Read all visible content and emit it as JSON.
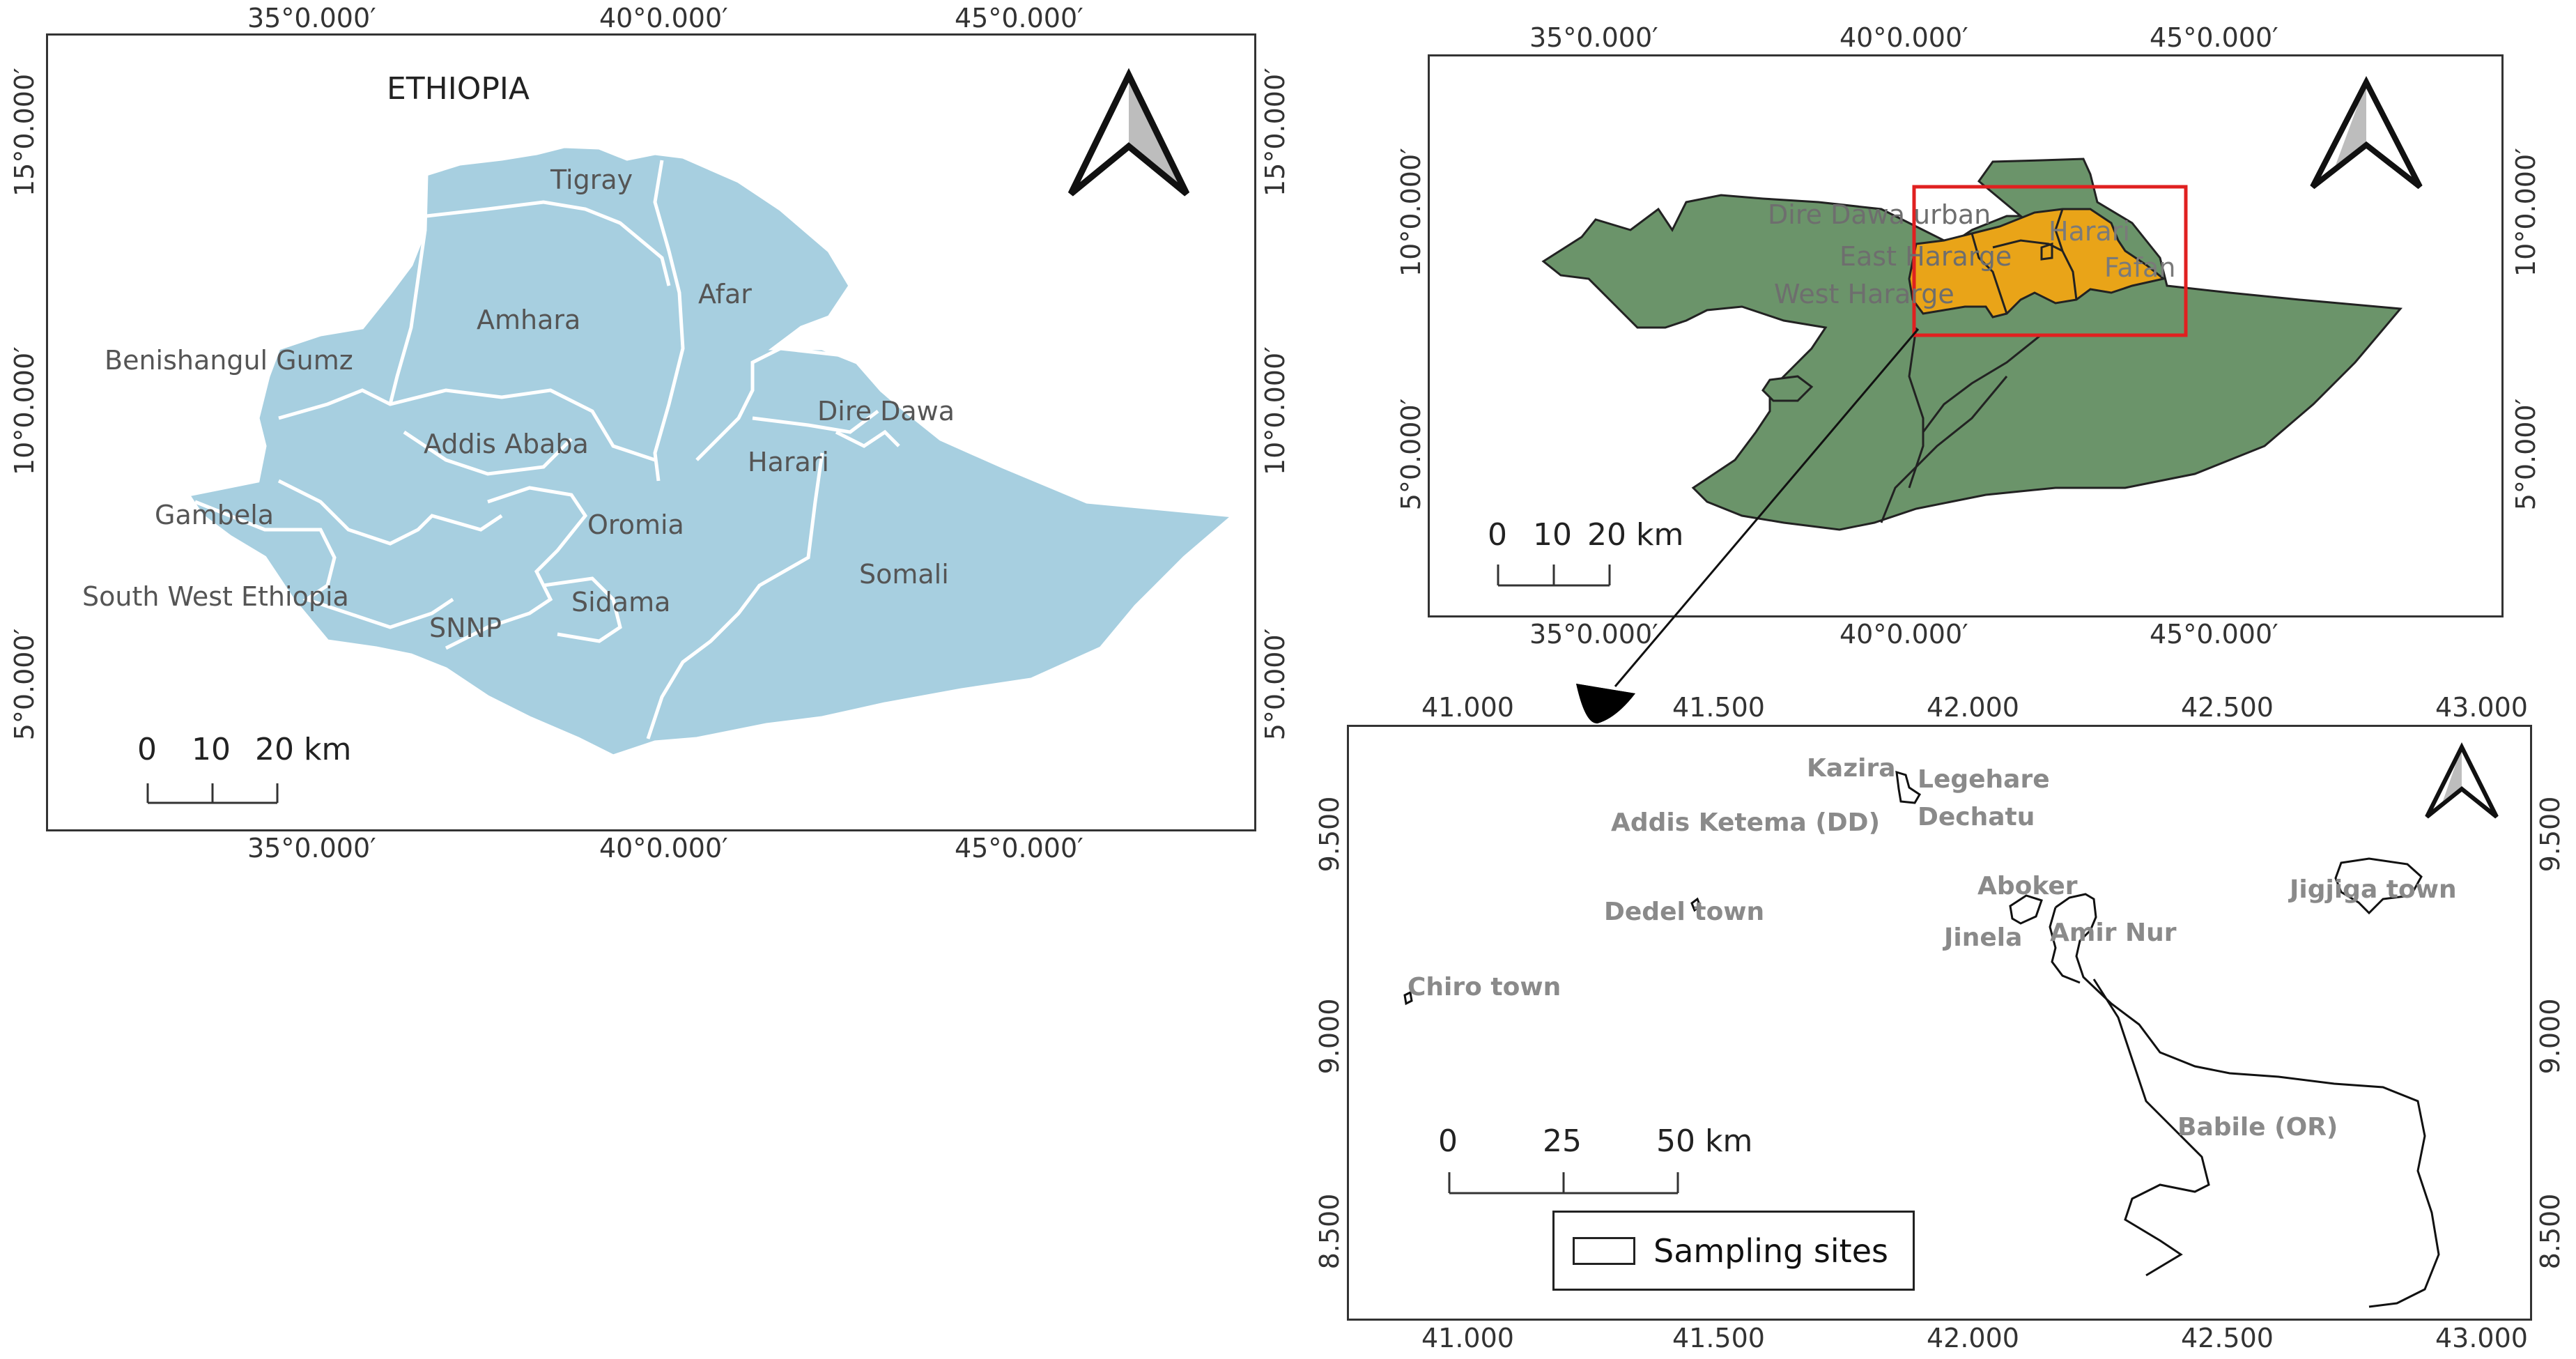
{
  "map1": {
    "title": "ETHIOPIA",
    "top_ticks": [
      "35°0.000′",
      "40°0.000′",
      "45°0.000′"
    ],
    "bottom_ticks": [
      "35°0.000′",
      "40°0.000′",
      "45°0.000′"
    ],
    "left_ticks": [
      "15°0.000′",
      "10°0.000′",
      "5°0.000′"
    ],
    "right_ticks": [
      "15°0.000′",
      "10°0.000′",
      "5°0.000′"
    ],
    "regions": [
      "Tigray",
      "Afar",
      "Amhara",
      "Benishangul Gumz",
      "Addis Ababa",
      "Dire Dawa",
      "Harari",
      "Gambela",
      "Oromia",
      "Somali",
      "South West Ethiopia",
      "SNNP",
      "Sidama"
    ],
    "scalebar": [
      "0",
      "10",
      "20 km"
    ],
    "fill_color": "#a7cfe0"
  },
  "map2": {
    "top_ticks": [
      "35°0.000′",
      "40°0.000′",
      "45°0.000′"
    ],
    "bottom_ticks": [
      "35°0.000′",
      "40°0.000′",
      "45°0.000′"
    ],
    "left_ticks": [
      "10°0.000′",
      "5°0.000′"
    ],
    "right_ticks": [
      "10°0.000′",
      "5°0.000′"
    ],
    "zones": [
      "Dire Dawa urban",
      "Harari",
      "East Hararge",
      "Fafan",
      "West Hararge"
    ],
    "scalebar": [
      "0",
      "10",
      "20 km"
    ],
    "fill_color": "#6b946a",
    "highlight_color": "#e9a418",
    "box_color": "#e02020"
  },
  "map3": {
    "top_ticks": [
      "41.000",
      "41.500",
      "42.000",
      "42.500",
      "43.000"
    ],
    "bottom_ticks": [
      "41.000",
      "41.500",
      "42.000",
      "42.500",
      "43.000"
    ],
    "left_ticks": [
      "9.500",
      "9.000",
      "8.500"
    ],
    "right_ticks": [
      "9.500",
      "9.000",
      "8.500"
    ],
    "sites": [
      "Kazira",
      "Legehare",
      "Addis Ketema (DD)",
      "Dechatu",
      "Aboker",
      "Jigjiga town",
      "Dedel town",
      "Jinela",
      "Amir Nur",
      "Chiro town",
      "Babile (OR)"
    ],
    "scalebar": [
      "0",
      "25",
      "50 km"
    ],
    "legend": "Sampling sites"
  }
}
